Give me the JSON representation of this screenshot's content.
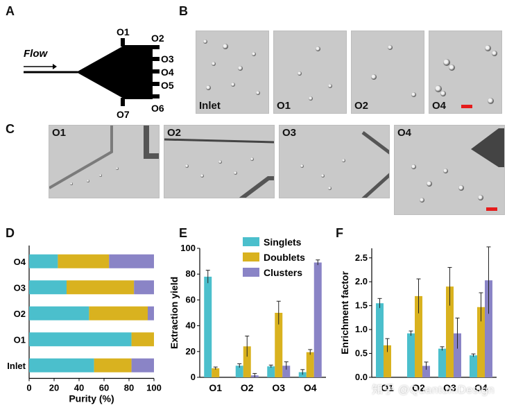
{
  "panels": {
    "A": "A",
    "B": "B",
    "C": "C",
    "D": "D",
    "E": "E",
    "F": "F"
  },
  "schematic": {
    "flow_label": "Flow",
    "outlets": [
      "O1",
      "O2",
      "O3",
      "O4",
      "O5",
      "O6",
      "O7"
    ]
  },
  "panel_b_images": [
    "Inlet",
    "O1",
    "O2",
    "O4"
  ],
  "panel_c_images": [
    "O1",
    "O2",
    "O3",
    "O4"
  ],
  "colors": {
    "singlets": "#4bbfcc",
    "doublets": "#d9b21f",
    "clusters": "#8a84c6",
    "scalebar": "#e51b1b"
  },
  "chart_data": [
    {
      "id": "D",
      "type": "bar",
      "orientation": "horizontal-stacked",
      "categories": [
        "O4",
        "O3",
        "O2",
        "O1",
        "Inlet"
      ],
      "series": [
        {
          "name": "Singlets",
          "values": [
            23,
            30,
            48,
            82,
            52
          ]
        },
        {
          "name": "Doublets",
          "values": [
            41,
            54,
            47,
            18,
            30
          ]
        },
        {
          "name": "Clusters",
          "values": [
            36,
            16,
            5,
            0,
            18
          ]
        }
      ],
      "xlabel": "Purity (%)",
      "xlim": [
        0,
        100
      ],
      "xticks": [
        "0",
        "20",
        "40",
        "60",
        "80",
        "100"
      ]
    },
    {
      "id": "E",
      "type": "bar",
      "categories": [
        "O1",
        "O2",
        "O3",
        "O4"
      ],
      "series": [
        {
          "name": "Singlets",
          "values": [
            78,
            9,
            8.5,
            4
          ],
          "errors": [
            5,
            1.5,
            1,
            2
          ]
        },
        {
          "name": "Doublets",
          "values": [
            7,
            24,
            50,
            19.5
          ],
          "errors": [
            1,
            8,
            9,
            2
          ]
        },
        {
          "name": "Clusters",
          "values": [
            0,
            1.5,
            9,
            89
          ],
          "errors": [
            0,
            1.5,
            3,
            2
          ]
        }
      ],
      "ylabel": "Extraction yield",
      "ylim": [
        0,
        100
      ],
      "yticks": [
        "0",
        "20",
        "40",
        "60",
        "80",
        "100"
      ],
      "legend": [
        "Singlets",
        "Doublets",
        "Clusters"
      ]
    },
    {
      "id": "F",
      "type": "bar",
      "categories": [
        "O1",
        "O2",
        "O3",
        "O4"
      ],
      "series": [
        {
          "name": "Singlets",
          "values": [
            1.55,
            0.92,
            0.6,
            0.46
          ],
          "errors": [
            0.1,
            0.05,
            0.04,
            0.03
          ]
        },
        {
          "name": "Doublets",
          "values": [
            0.67,
            1.7,
            1.9,
            1.47
          ],
          "errors": [
            0.14,
            0.36,
            0.4,
            0.3
          ]
        },
        {
          "name": "Clusters",
          "values": [
            0,
            0.24,
            0.92,
            2.03
          ],
          "errors": [
            0,
            0.08,
            0.32,
            0.7
          ]
        }
      ],
      "ylabel": "Enrichment factor",
      "ylim": [
        0,
        2.7
      ],
      "yticks": [
        "0.0",
        "0.5",
        "1.0",
        "1.5",
        "2.0",
        "2.5"
      ]
    }
  ],
  "watermark": "知乎 @QuantumDesign"
}
